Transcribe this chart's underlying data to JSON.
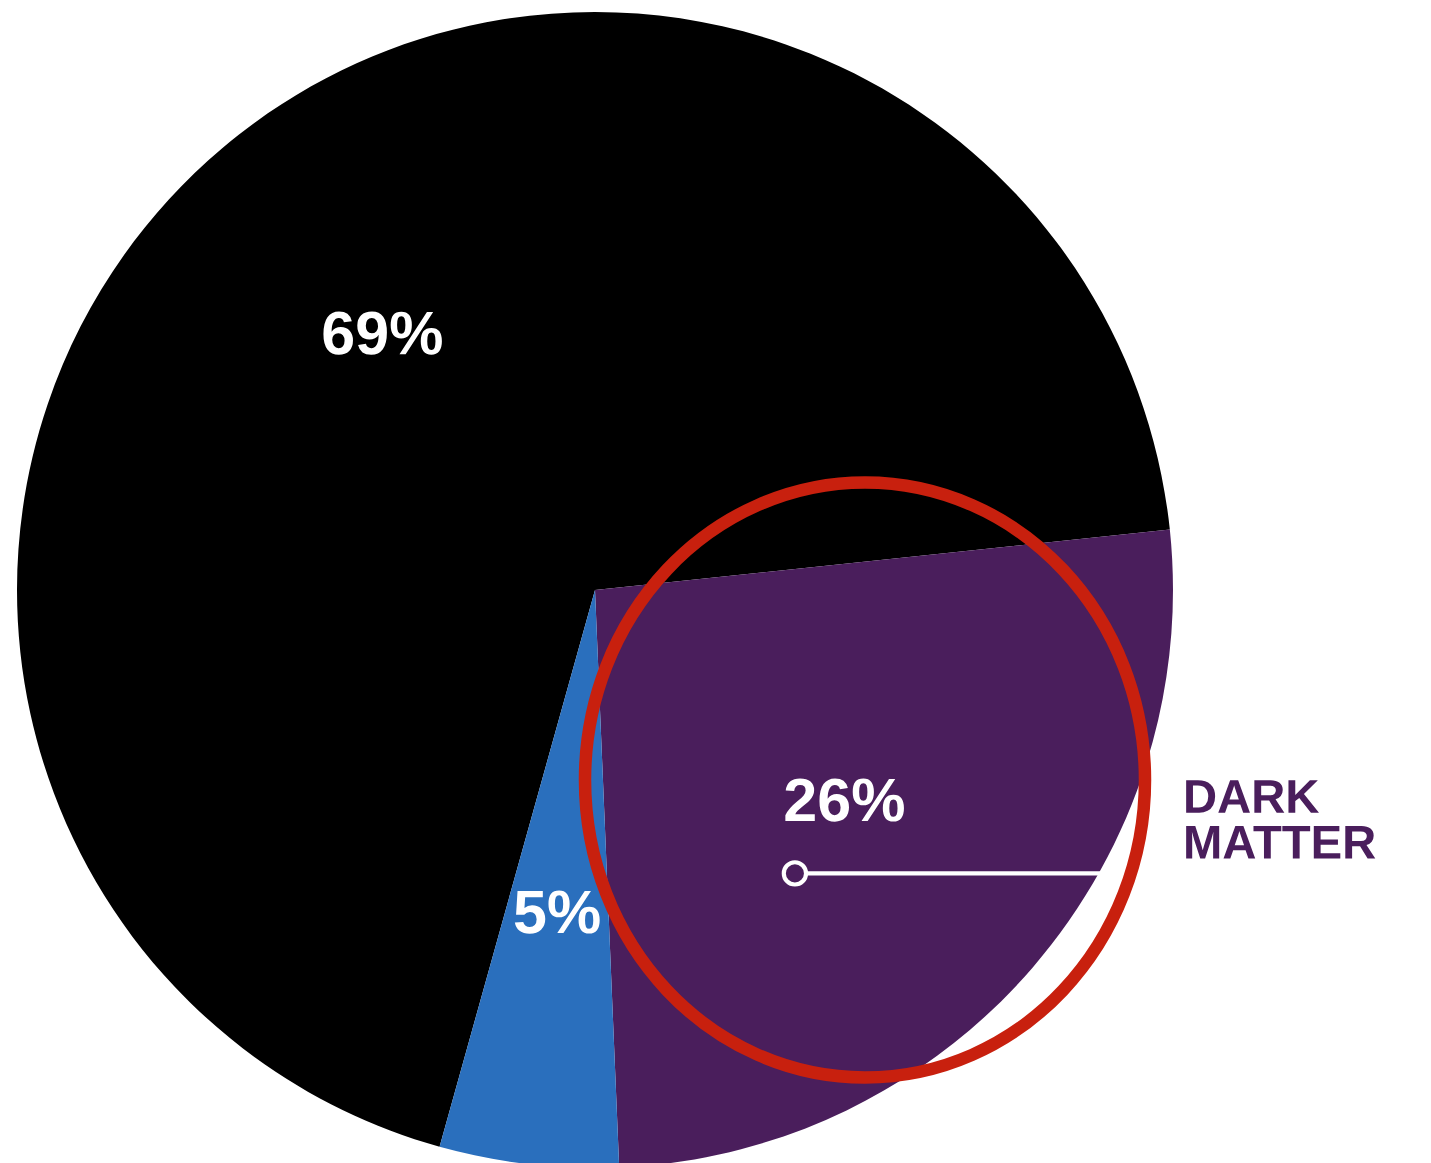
{
  "chart_data": {
    "type": "pie",
    "categories": [
      null,
      "DARK MATTER",
      null
    ],
    "values": [
      69,
      26,
      5
    ],
    "colors": [
      "#000000",
      "#4a1e5c",
      "#2a6fbd"
    ],
    "value_labels": [
      "69%",
      "26%",
      "5%"
    ]
  }
}
